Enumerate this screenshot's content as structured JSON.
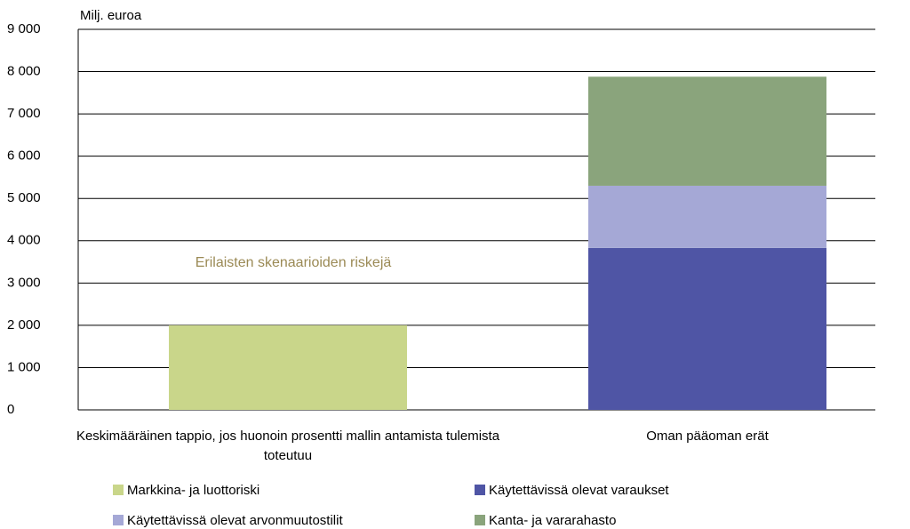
{
  "chart_data": {
    "type": "stacked_bar",
    "y_axis_label": "Milj. euroa",
    "annotation": "Erilaisten skenaarioiden riskejä",
    "categories": [
      "Keskimääräinen tappio, jos  huonoin prosentti mallin antamista tulemista toteutuu",
      "Oman pääoman erät"
    ],
    "series": [
      {
        "name": "Markkina- ja luottoriski",
        "color": "#c9d68a",
        "values": [
          2000,
          null
        ]
      },
      {
        "name": "Käytettävissä olevat varaukset",
        "color": "#4f55a5",
        "values": [
          null,
          3830
        ]
      },
      {
        "name": "Käytettävissä olevat arvonmuutostilit",
        "color": "#a5a8d6",
        "values": [
          null,
          1470
        ]
      },
      {
        "name": "Kanta- ja vararahasto",
        "color": "#8aa47c",
        "values": [
          null,
          2580
        ]
      }
    ],
    "ylim": [
      0,
      9000
    ],
    "yticks": [
      0,
      {
        "value": 1000,
        "label": "1 000"
      },
      {
        "value": 2000,
        "label": "2 000"
      },
      {
        "value": 3000,
        "label": "3 000"
      },
      {
        "value": 4000,
        "label": "4 000"
      },
      {
        "value": 5000,
        "label": "5 000"
      },
      {
        "value": 6000,
        "label": "6 000"
      },
      {
        "value": 7000,
        "label": "7 000"
      },
      {
        "value": 8000,
        "label": "8 000"
      },
      {
        "value": 9000,
        "label": "9 000"
      }
    ],
    "grid": true
  }
}
